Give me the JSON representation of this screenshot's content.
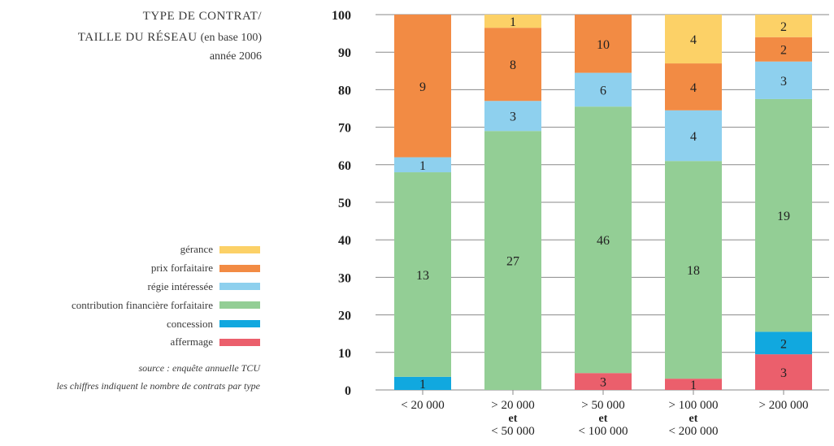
{
  "title": {
    "line1": "TYPE DE CONTRAT/",
    "line2_caps": "TAILLE DU RÉSEAU",
    "line2_small": "(en base 100)",
    "line3": "année 2006"
  },
  "source_note": "source : enquête annuelle TCU",
  "numbers_note": "les chiffres indiquent le nombre de contrats par type",
  "legend": [
    {
      "label": "gérance",
      "color": "#FCD167"
    },
    {
      "label": "prix forfaitaire",
      "color": "#F28B44"
    },
    {
      "label": "régie intéressée",
      "color": "#8ED0EE"
    },
    {
      "label": "contribution financière forfaitaire",
      "color": "#93CE95"
    },
    {
      "label": "concession",
      "color": "#11A8DF"
    },
    {
      "label": "affermage",
      "color": "#EB5F6C"
    }
  ],
  "chart_data": {
    "type": "bar",
    "stacked": true,
    "ylim": [
      0,
      100
    ],
    "yticks": [
      0,
      10,
      20,
      30,
      40,
      50,
      60,
      70,
      80,
      90,
      100
    ],
    "grid": true,
    "categories": [
      [
        "< 20 000"
      ],
      [
        "> 20 000",
        "et",
        "< 50 000"
      ],
      [
        "> 50 000",
        "et",
        "< 100 000"
      ],
      [
        "> 100 000",
        "et",
        "< 200 000"
      ],
      [
        "> 200 000"
      ]
    ],
    "series": [
      {
        "name": "affermage",
        "color": "#EB5F6C",
        "values": [
          0,
          0,
          4.5,
          3,
          9.5
        ],
        "labels": [
          "",
          "",
          "3",
          "1",
          "3"
        ]
      },
      {
        "name": "concession",
        "color": "#11A8DF",
        "values": [
          3.5,
          0,
          0,
          0,
          6
        ],
        "labels": [
          "1",
          "",
          "",
          "",
          "2"
        ]
      },
      {
        "name": "contribution financière forfaitaire",
        "color": "#93CE95",
        "values": [
          54.5,
          69,
          71,
          58,
          62
        ],
        "labels": [
          "13",
          "27",
          "46",
          "18",
          "19"
        ]
      },
      {
        "name": "régie intéressée",
        "color": "#8ED0EE",
        "values": [
          4,
          8,
          9,
          13.5,
          10
        ],
        "labels": [
          "1",
          "3",
          "6",
          "4",
          "3"
        ]
      },
      {
        "name": "prix forfaitaire",
        "color": "#F28B44",
        "values": [
          38,
          19.5,
          15.5,
          12.5,
          6.5
        ],
        "labels": [
          "9",
          "8",
          "10",
          "4",
          "2"
        ]
      },
      {
        "name": "gérance",
        "color": "#FCD167",
        "values": [
          0,
          3.5,
          0,
          13,
          6
        ],
        "labels": [
          "",
          "1",
          "",
          "4",
          "2"
        ]
      }
    ]
  }
}
